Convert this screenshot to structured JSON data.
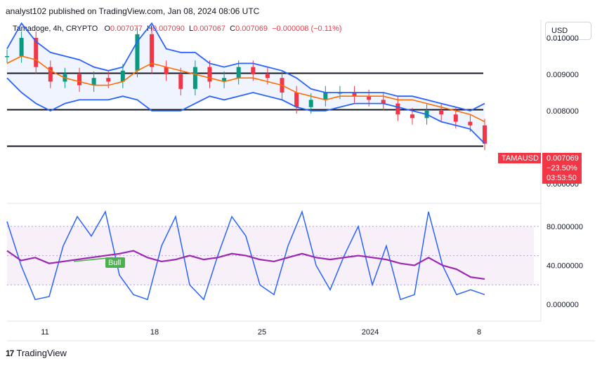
{
  "header": {
    "published": "analyst102 published on TradingView.com, Jan 08, 2024 08:06 UTC",
    "symbol": "Tamadoge, 4h, CRYPTO",
    "o_label": "O",
    "o_value": "0.007077",
    "h_label": "H",
    "h_value": "0.007090",
    "l_label": "L",
    "l_value": "0.007067",
    "c_label": "C",
    "c_value": "0.007069",
    "change": "−0.000008 (−0.11%)",
    "currency_button": "USD"
  },
  "price_tag": {
    "symbol": "TAMAUSD",
    "price": "0.007069",
    "change_pct": "−23.50%",
    "countdown": "03:53:50"
  },
  "footer": {
    "brand": "TradingView",
    "logo_icon": "tradingview-logo-icon"
  },
  "colors": {
    "up": "#089981",
    "down": "#f23645",
    "bb_band": "#2962ff",
    "bb_basis": "#ff6d00",
    "stoch_k": "#2962ff",
    "rsi": "#9c27b0",
    "tag": "#f23645",
    "bull": "#4caf50"
  },
  "chart_data": [
    {
      "type": "candlestick",
      "title": "Tamadoge, 4h, CRYPTO",
      "y_ticks": [
        "0.010000",
        "0.009000",
        "0.008000",
        "0.006000"
      ],
      "x_ticks": [
        "11",
        "18",
        "25",
        "2024",
        "8"
      ],
      "ylim": [
        0.0055,
        0.0105
      ],
      "horizontal_levels": [
        0.00903,
        0.00803,
        0.00703
      ],
      "series": [
        {
          "name": "Bollinger Upper",
          "values": [
            0.0097,
            0.0104,
            0.0099,
            0.0096,
            0.0095,
            0.0094,
            0.0092,
            0.0091,
            0.0092,
            0.0099,
            0.0104,
            0.0097,
            0.0096,
            0.0096,
            0.0093,
            0.0092,
            0.0093,
            0.0093,
            0.0092,
            0.0091,
            0.0089,
            0.0086,
            0.0085,
            0.0085,
            0.0085,
            0.0085,
            0.0085,
            0.0084,
            0.0084,
            0.0083,
            0.0082,
            0.0081,
            0.008,
            0.0082
          ]
        },
        {
          "name": "Bollinger Basis",
          "values": [
            0.0093,
            0.0095,
            0.0094,
            0.0091,
            0.0089,
            0.0088,
            0.0087,
            0.0087,
            0.0088,
            0.0091,
            0.0093,
            0.0092,
            0.0091,
            0.009,
            0.0089,
            0.0088,
            0.0089,
            0.0089,
            0.0088,
            0.0087,
            0.0085,
            0.0084,
            0.0083,
            0.0084,
            0.0084,
            0.0084,
            0.0084,
            0.0083,
            0.0083,
            0.0082,
            0.0081,
            0.008,
            0.0079,
            0.0077
          ]
        },
        {
          "name": "Bollinger Lower",
          "values": [
            0.0089,
            0.0085,
            0.0082,
            0.008,
            0.0082,
            0.0083,
            0.0083,
            0.0083,
            0.0084,
            0.0083,
            0.008,
            0.008,
            0.008,
            0.0082,
            0.0084,
            0.0083,
            0.0084,
            0.0085,
            0.0084,
            0.0083,
            0.0081,
            0.008,
            0.008,
            0.0081,
            0.0082,
            0.0082,
            0.0082,
            0.0081,
            0.008,
            0.0079,
            0.0077,
            0.0076,
            0.0075,
            0.0071
          ]
        },
        {
          "name": "Close",
          "values": [
            0.0095,
            0.01,
            0.0092,
            0.0088,
            0.009,
            0.0087,
            0.0089,
            0.0088,
            0.0091,
            0.0101,
            0.0092,
            0.009,
            0.0086,
            0.0092,
            0.0088,
            0.0089,
            0.0092,
            0.009,
            0.0089,
            0.0085,
            0.0081,
            0.0083,
            0.0085,
            0.0085,
            0.0084,
            0.0083,
            0.0082,
            0.0079,
            0.0078,
            0.008,
            0.0079,
            0.0077,
            0.0076,
            0.0071
          ]
        }
      ]
    },
    {
      "type": "line",
      "title": "Stochastic RSI",
      "y_ticks": [
        "80.000000",
        "40.000000",
        "0.000000"
      ],
      "ylim": [
        -15,
        100
      ],
      "band": [
        20,
        80
      ],
      "annotation": "Bull",
      "series": [
        {
          "name": "K",
          "values": [
            85,
            40,
            5,
            8,
            60,
            90,
            70,
            95,
            30,
            10,
            5,
            60,
            90,
            20,
            5,
            50,
            90,
            70,
            20,
            10,
            60,
            95,
            40,
            15,
            50,
            80,
            20,
            60,
            5,
            10,
            95,
            40,
            10,
            15,
            10
          ]
        },
        {
          "name": "RSI",
          "values": [
            55,
            45,
            48,
            42,
            44,
            46,
            48,
            50,
            52,
            55,
            48,
            44,
            46,
            50,
            46,
            48,
            52,
            50,
            46,
            44,
            48,
            52,
            48,
            46,
            48,
            50,
            48,
            46,
            42,
            40,
            48,
            40,
            36,
            28,
            26
          ]
        }
      ]
    }
  ]
}
